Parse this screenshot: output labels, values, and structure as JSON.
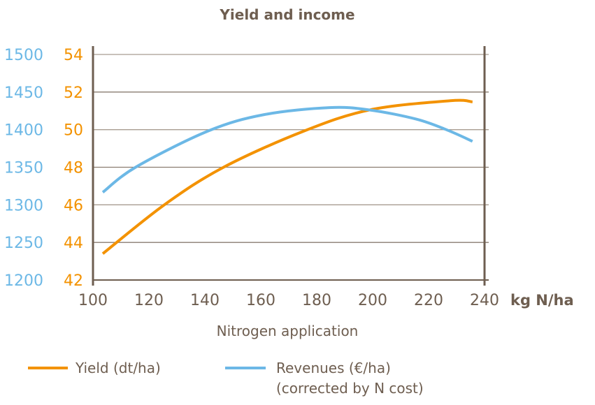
{
  "chart_data": {
    "type": "line",
    "title": "Yield and income",
    "xlabel": "Nitrogen application",
    "x_unit": "kg N/ha",
    "xlim": [
      100,
      240
    ],
    "x_ticks": [
      100,
      120,
      140,
      160,
      180,
      200,
      220,
      240
    ],
    "y_left": {
      "lim": [
        42,
        54
      ],
      "ticks": [
        42,
        44,
        46,
        48,
        50,
        52,
        54
      ],
      "color": "#F39200"
    },
    "y_right_blue": {
      "lim": [
        1200,
        1500
      ],
      "ticks": [
        1200,
        1250,
        1300,
        1350,
        1400,
        1450,
        1500
      ],
      "color": "#6CB8E6"
    },
    "grid": true,
    "legend_placement": "bottom",
    "series": [
      {
        "name": "Yield (dt/ha)",
        "axis": "left",
        "color": "#F39200",
        "x": [
          103.5,
          125.5,
          146.7,
          175,
          198.9,
          227.7,
          235.7
        ],
        "y": [
          43.4,
          46.0,
          48.0,
          49.9,
          51.05,
          51.54,
          51.48
        ]
      },
      {
        "name": "Revenues (€/ha)",
        "name_line2": "(corrected by N cost)",
        "axis": "blue",
        "color": "#6CB8E6",
        "x": [
          103.5,
          115.5,
          141.3,
          161.2,
          184.5,
          198.9,
          215.7,
          226.7,
          235.7
        ],
        "y": [
          1316.7,
          1350.6,
          1398.4,
          1420,
          1429.3,
          1426.2,
          1413.9,
          1399.4,
          1384.5
        ]
      }
    ],
    "colors": {
      "axis": "#6E5E50",
      "grid": "#A89C90",
      "text": "#6E5E50"
    }
  }
}
